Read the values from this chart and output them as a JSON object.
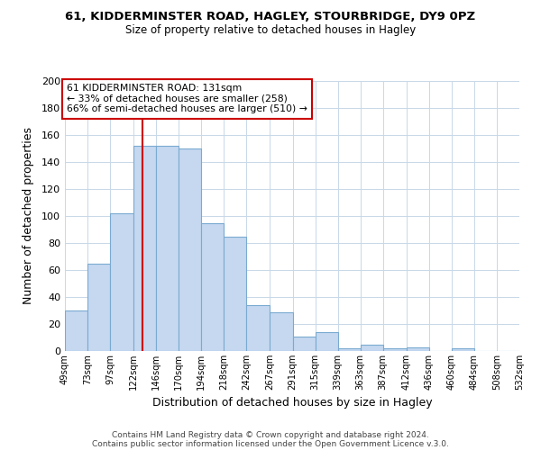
{
  "title": "61, KIDDERMINSTER ROAD, HAGLEY, STOURBRIDGE, DY9 0PZ",
  "subtitle": "Size of property relative to detached houses in Hagley",
  "xlabel": "Distribution of detached houses by size in Hagley",
  "ylabel": "Number of detached properties",
  "bin_edges": [
    49,
    73,
    97,
    122,
    146,
    170,
    194,
    218,
    242,
    267,
    291,
    315,
    339,
    363,
    387,
    412,
    436,
    460,
    484,
    508,
    532
  ],
  "bar_heights": [
    30,
    65,
    102,
    152,
    152,
    150,
    95,
    85,
    34,
    29,
    11,
    14,
    2,
    5,
    2,
    3,
    0,
    2,
    0,
    0
  ],
  "bar_color": "#c5d8f0",
  "bar_edge_color": "#7aaad0",
  "vline_x": 131,
  "vline_color": "#cc0000",
  "ylim": [
    0,
    200
  ],
  "yticks": [
    0,
    20,
    40,
    60,
    80,
    100,
    120,
    140,
    160,
    180,
    200
  ],
  "annotation_title": "61 KIDDERMINSTER ROAD: 131sqm",
  "annotation_line1": "← 33% of detached houses are smaller (258)",
  "annotation_line2": "66% of semi-detached houses are larger (510) →",
  "annotation_box_edge": "#cc0000",
  "footer_line1": "Contains HM Land Registry data © Crown copyright and database right 2024.",
  "footer_line2": "Contains public sector information licensed under the Open Government Licence v.3.0.",
  "tick_labels": [
    "49sqm",
    "73sqm",
    "97sqm",
    "122sqm",
    "146sqm",
    "170sqm",
    "194sqm",
    "218sqm",
    "242sqm",
    "267sqm",
    "291sqm",
    "315sqm",
    "339sqm",
    "363sqm",
    "387sqm",
    "412sqm",
    "436sqm",
    "460sqm",
    "484sqm",
    "508sqm",
    "532sqm"
  ],
  "background_color": "#ffffff",
  "grid_color": "#c8d8e8"
}
